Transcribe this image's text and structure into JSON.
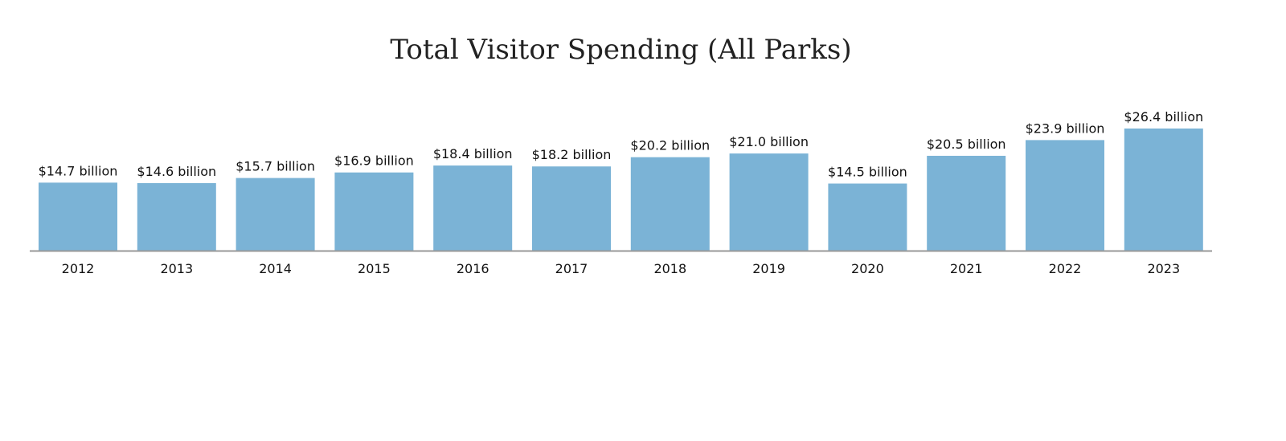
{
  "chart_data": {
    "type": "bar",
    "title": "Total Visitor Spending (All Parks)",
    "xlabel": "",
    "ylabel": "",
    "categories": [
      "2012",
      "2013",
      "2014",
      "2015",
      "2016",
      "2017",
      "2018",
      "2019",
      "2020",
      "2021",
      "2022",
      "2023"
    ],
    "values": [
      14.7,
      14.6,
      15.7,
      16.9,
      18.4,
      18.2,
      20.2,
      21.0,
      14.5,
      20.5,
      23.9,
      26.4
    ],
    "data_labels": [
      "$14.7 billion",
      "$14.6 billion",
      "$15.7 billion",
      "$16.9 billion",
      "$18.4 billion",
      "$18.2 billion",
      "$20.2 billion",
      "$21.0 billion",
      "$14.5 billion",
      "$20.5 billion",
      "$23.9 billion",
      "$26.4 billion"
    ],
    "unit": "billion USD",
    "ylim": [
      0,
      26.4
    ],
    "grid": false,
    "legend": "none",
    "colors": {
      "bar": "#7bb3d6",
      "axis": "#999999"
    }
  }
}
